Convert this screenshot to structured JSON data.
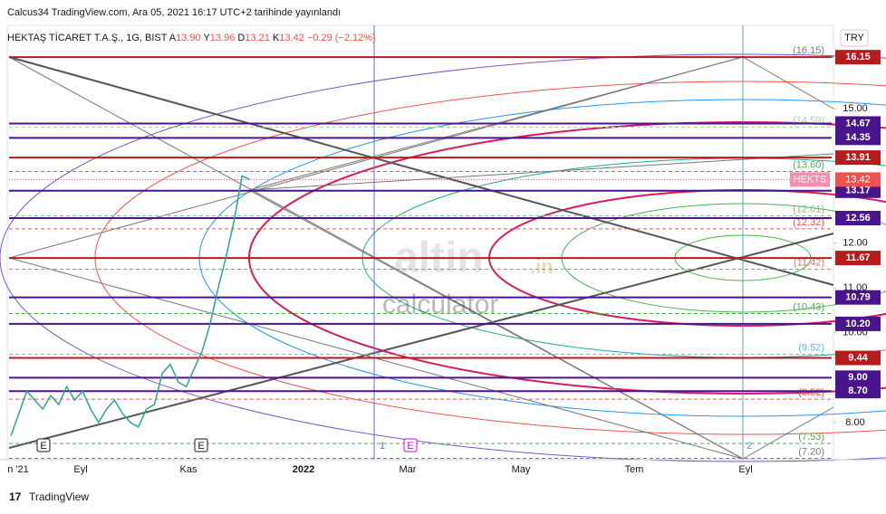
{
  "header": {
    "published": "Calcus34 TradingView.com, Ara 05, 2021 16:17 UTC+2 tarihinde yayınlandı",
    "symbol": "HEKTAŞ TİCARET T.A.Ş., 1G, BIST",
    "open_key": "A",
    "open": "13.90",
    "high_key": "Y",
    "high": "13.96",
    "low_key": "D",
    "low": "13.21",
    "close_key": "K",
    "close": "13.42",
    "change": "−0.29 (−2.12%)",
    "currency": "TRY"
  },
  "watermark": {
    "brand": "altin",
    "tld": ".in",
    "sub": "calculator"
  },
  "footer": "TradingView",
  "events": [
    "E",
    "E",
    "1",
    "E",
    "2"
  ],
  "chart_data": {
    "type": "line",
    "color": "#26a69a",
    "values": [
      7.7,
      8.2,
      8.7,
      8.5,
      8.3,
      8.6,
      8.4,
      8.8,
      8.5,
      8.7,
      8.3,
      8.0,
      8.3,
      8.5,
      8.2,
      8.0,
      7.9,
      8.3,
      8.4,
      9.1,
      9.3,
      8.9,
      8.8,
      9.2,
      9.6,
      10.2,
      11.0,
      11.7,
      12.5,
      13.5,
      13.42
    ],
    "x_labels": [
      "n '21",
      "Eyl",
      "Kas",
      "2022",
      "Mar",
      "May",
      "Tem",
      "Eyl"
    ],
    "ylim": [
      7.19,
      16.86
    ],
    "yticks": [
      {
        "value": 8,
        "label": "8.00"
      },
      {
        "value": 10,
        "label": "10.00"
      },
      {
        "value": 11,
        "label": "11.00"
      },
      {
        "value": 12,
        "label": "12.00"
      },
      {
        "value": 15,
        "label": "15.00"
      }
    ],
    "levels": [
      {
        "value": 16.15,
        "label": "16.15",
        "color": "#b71c1c"
      },
      {
        "value": 14.67,
        "label": "14.67",
        "color": "#4a148c"
      },
      {
        "value": 14.35,
        "label": "14.35",
        "color": "#4a148c"
      },
      {
        "value": 13.91,
        "label": "13.91",
        "color": "#b71c1c"
      },
      {
        "value": 13.17,
        "label": "13.17",
        "color": "#4a148c"
      },
      {
        "value": 12.56,
        "label": "12.56",
        "color": "#4a148c"
      },
      {
        "value": 11.67,
        "label": "11.67",
        "color": "#b71c1c"
      },
      {
        "value": 10.79,
        "label": "10.79",
        "color": "#4a148c"
      },
      {
        "value": 10.2,
        "label": "10.20",
        "color": "#4a148c"
      },
      {
        "value": 9.44,
        "label": "9.44",
        "color": "#b71c1c"
      },
      {
        "value": 9,
        "label": "9.00",
        "color": "#4a148c"
      },
      {
        "value": 8.7,
        "label": "8.70",
        "color": "#4a148c"
      }
    ],
    "fib": [
      {
        "value": 16.15,
        "label": "(16.15)",
        "color": "#787b86"
      },
      {
        "value": 14.59,
        "label": "(14.59)",
        "color": "#a5d6a7"
      },
      {
        "value": 13.6,
        "label": "(13.60)",
        "color": "#4caf50"
      },
      {
        "value": 12.61,
        "label": "(12.61)",
        "color": "#81c784"
      },
      {
        "value": 12.32,
        "label": "(12.32)",
        "color": "#ef5350"
      },
      {
        "value": 11.42,
        "label": "(11.42)",
        "color": "#e57373"
      },
      {
        "value": 10.43,
        "label": "(10.43)",
        "color": "#4caf50"
      },
      {
        "value": 9.52,
        "label": "(9.52)",
        "color": "#64b5f6"
      },
      {
        "value": 8.52,
        "label": "(8.52)",
        "color": "#ef5350"
      },
      {
        "value": 7.53,
        "label": "(7.53)",
        "color": "#4caf50"
      },
      {
        "value": 7.2,
        "label": "(7.20)",
        "color": "#787b86"
      }
    ],
    "last": {
      "symbol": "HEKTS",
      "value": 13.42
    }
  }
}
